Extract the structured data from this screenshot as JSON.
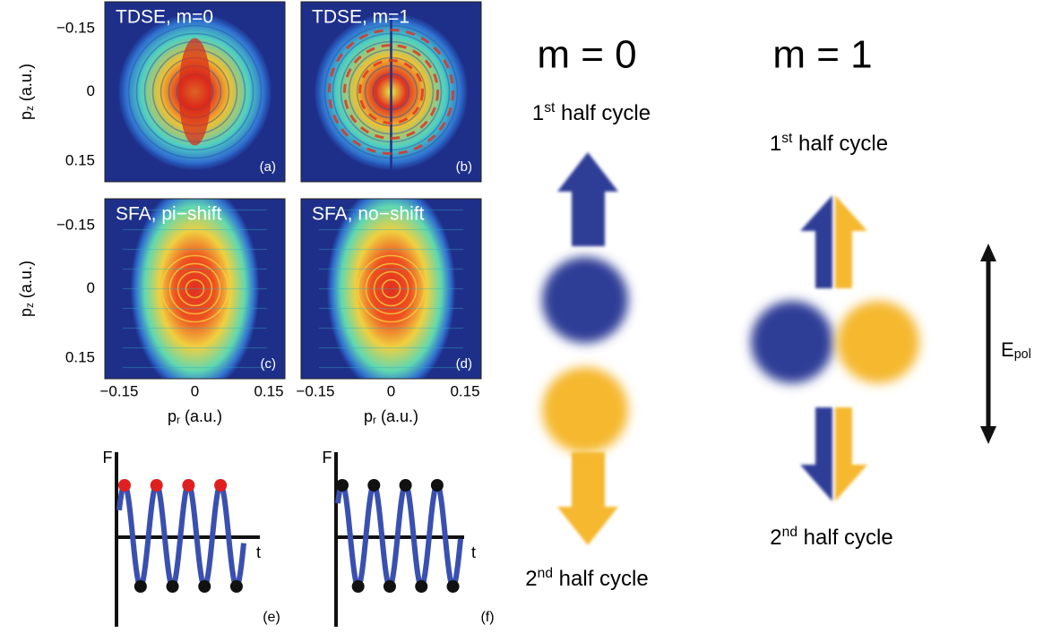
{
  "panels": [
    {
      "title": "TDSE, m=0",
      "tag": "(a)"
    },
    {
      "title": "TDSE, m=1",
      "tag": "(b)"
    },
    {
      "title": "SFA, pi−shift",
      "tag": "(c)"
    },
    {
      "title": "SFA, no−shift",
      "tag": "(d)"
    }
  ],
  "axes": {
    "y_ticks": [
      "−0.15",
      "0",
      "0.15"
    ],
    "x_ticks": [
      "−0.15",
      "0",
      "0.15"
    ],
    "y_label": {
      "base": "p",
      "sub": "z",
      "unit": " (a.u.)"
    },
    "x_label": {
      "base": "p",
      "sub": "r",
      "unit": " (a.u.)"
    }
  },
  "field_plots": [
    {
      "y_label": "F",
      "x_label": "t",
      "tag": "(e)"
    },
    {
      "y_label": "F",
      "x_label": "t",
      "tag": "(f)"
    }
  ],
  "schematic": {
    "m0": {
      "title": "m = 0",
      "top": {
        "base": "1",
        "sup": "st",
        "rest": " half cycle"
      },
      "bottom": {
        "base": "2",
        "sup": "nd",
        "rest": " half cycle"
      }
    },
    "m1": {
      "title": "m = 1",
      "top": {
        "base": "1",
        "sup": "st",
        "rest": " half cycle"
      },
      "bottom": {
        "base": "2",
        "sup": "nd",
        "rest": " half cycle"
      }
    },
    "field": {
      "base": "E",
      "sub": "pol"
    }
  }
}
